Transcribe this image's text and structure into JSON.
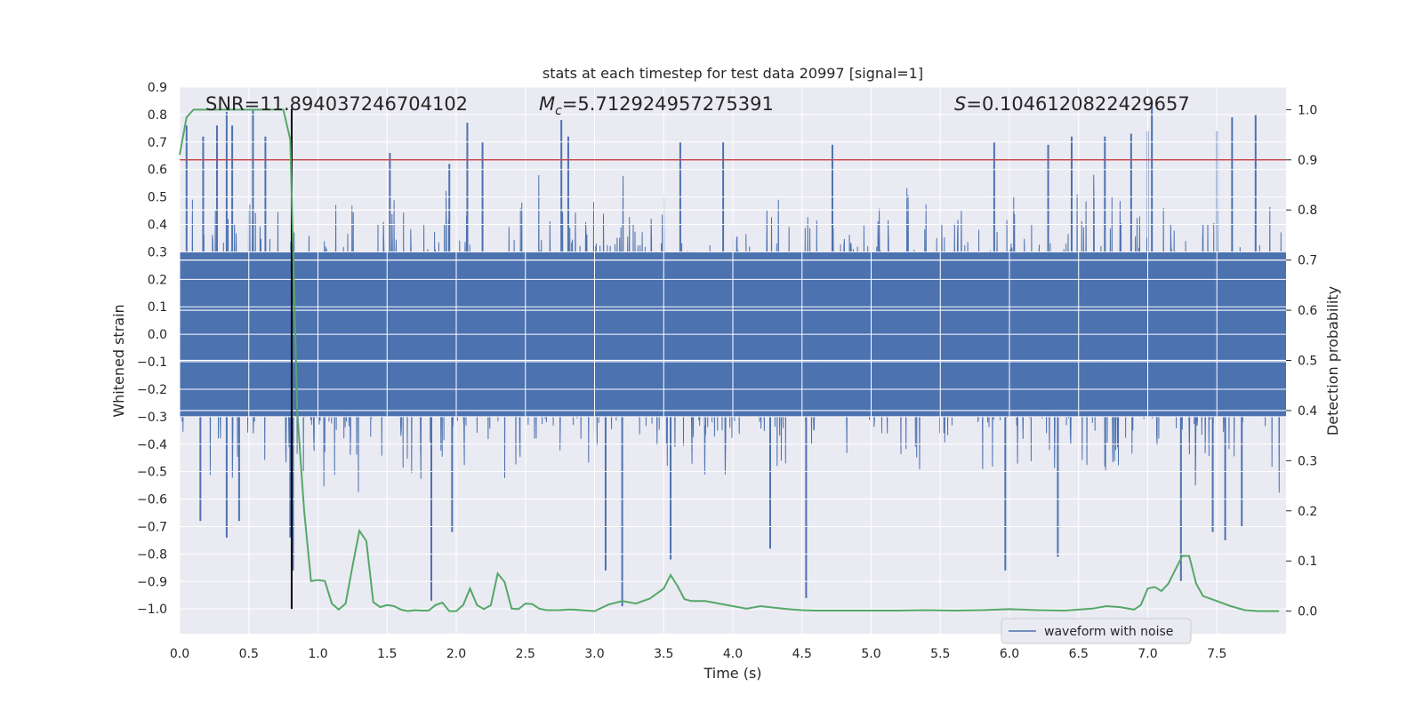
{
  "chart_data": {
    "type": "line",
    "title": "stats at each timestep for test data 20997 [signal=1]",
    "xlabel": "Time (s)",
    "ylabel": "Whitened strain",
    "ylabel_right": "Detection probability",
    "xlim": [
      0.0,
      8.0
    ],
    "ylim": [
      -1.09,
      0.9
    ],
    "ylim_right": [
      -0.045,
      1.045
    ],
    "x_ticks": [
      "0.0",
      "0.5",
      "1.0",
      "1.5",
      "2.0",
      "2.5",
      "3.0",
      "3.5",
      "4.0",
      "4.5",
      "5.0",
      "5.5",
      "6.0",
      "6.5",
      "7.0",
      "7.5"
    ],
    "x_tick_values": [
      0,
      0.5,
      1,
      1.5,
      2,
      2.5,
      3,
      3.5,
      4,
      4.5,
      5,
      5.5,
      6,
      6.5,
      7,
      7.5
    ],
    "y_ticks": [
      "0.9",
      "0.8",
      "0.7",
      "0.6",
      "0.5",
      "0.4",
      "0.3",
      "0.2",
      "0.1",
      "0.0",
      "−0.1",
      "−0.2",
      "−0.3",
      "−0.4",
      "−0.5",
      "−0.6",
      "−0.7",
      "−0.8",
      "−0.9",
      "−1.0"
    ],
    "y_tick_values": [
      0.9,
      0.8,
      0.7,
      0.6,
      0.5,
      0.4,
      0.3,
      0.2,
      0.1,
      0,
      -0.1,
      -0.2,
      -0.3,
      -0.4,
      -0.5,
      -0.6,
      -0.7,
      -0.8,
      -0.9,
      -1.0
    ],
    "y2_ticks": [
      "1.0",
      "0.9",
      "0.8",
      "0.7",
      "0.6",
      "0.5",
      "0.4",
      "0.3",
      "0.2",
      "0.1",
      "0.0"
    ],
    "y2_tick_values": [
      1.0,
      0.9,
      0.8,
      0.7,
      0.6,
      0.5,
      0.4,
      0.3,
      0.2,
      0.1,
      0.0
    ],
    "annotations": {
      "snr": "SNR=11.894037246704102",
      "mc_symbol": "M",
      "mc_sub": "c",
      "mc_value": "=5.712924957275391",
      "s_symbol": "S",
      "s_value": "=0.1046120822429657"
    },
    "threshold": {
      "value": 0.9,
      "axis": "right",
      "color": "#c44e52"
    },
    "event_marker": {
      "time": 0.81,
      "y_top": 0.82,
      "y_bottom": -1.0,
      "color": "#000000"
    },
    "series": [
      {
        "name": "waveform with noise",
        "axis": "left",
        "color": "#4c72b0",
        "kind": "noise",
        "description": "dense whitened strain samples, core band roughly ±0.3, extremes about +0.82 / -0.99",
        "spikes": [
          {
            "t": 0.05,
            "v": 0.76
          },
          {
            "t": 0.17,
            "v": 0.72
          },
          {
            "t": 0.27,
            "v": 0.76
          },
          {
            "t": 0.34,
            "v": 0.81
          },
          {
            "t": 0.38,
            "v": 0.76
          },
          {
            "t": 0.53,
            "v": 0.82
          },
          {
            "t": 0.62,
            "v": 0.72
          },
          {
            "t": 1.52,
            "v": 0.66
          },
          {
            "t": 1.95,
            "v": 0.62
          },
          {
            "t": 2.08,
            "v": 0.77
          },
          {
            "t": 2.19,
            "v": 0.7
          },
          {
            "t": 2.76,
            "v": 0.78
          },
          {
            "t": 2.81,
            "v": 0.72
          },
          {
            "t": 3.62,
            "v": 0.7
          },
          {
            "t": 3.93,
            "v": 0.7
          },
          {
            "t": 4.72,
            "v": 0.69
          },
          {
            "t": 5.89,
            "v": 0.7
          },
          {
            "t": 6.28,
            "v": 0.69
          },
          {
            "t": 6.45,
            "v": 0.72
          },
          {
            "t": 6.69,
            "v": 0.72
          },
          {
            "t": 6.88,
            "v": 0.73
          },
          {
            "t": 7.0,
            "v": 0.74
          },
          {
            "t": 7.03,
            "v": 0.83
          },
          {
            "t": 7.5,
            "v": 0.74
          },
          {
            "t": 7.61,
            "v": 0.79
          },
          {
            "t": 7.78,
            "v": 0.8
          },
          {
            "t": 0.15,
            "v": -0.68
          },
          {
            "t": 0.34,
            "v": -0.74
          },
          {
            "t": 0.43,
            "v": -0.68
          },
          {
            "t": 0.8,
            "v": -0.74
          },
          {
            "t": 0.82,
            "v": -0.86
          },
          {
            "t": 1.82,
            "v": -0.97
          },
          {
            "t": 1.97,
            "v": -0.72
          },
          {
            "t": 3.2,
            "v": -0.99
          },
          {
            "t": 3.08,
            "v": -0.86
          },
          {
            "t": 3.55,
            "v": -0.82
          },
          {
            "t": 4.27,
            "v": -0.78
          },
          {
            "t": 4.53,
            "v": -0.96
          },
          {
            "t": 5.97,
            "v": -0.86
          },
          {
            "t": 6.35,
            "v": -0.81
          },
          {
            "t": 7.24,
            "v": -0.9
          },
          {
            "t": 7.47,
            "v": -0.72
          },
          {
            "t": 7.56,
            "v": -0.75
          },
          {
            "t": 7.68,
            "v": -0.7
          }
        ]
      },
      {
        "name": "detection probability",
        "axis": "right",
        "color": "#55a868",
        "kind": "line",
        "x": [
          0.0,
          0.05,
          0.1,
          0.15,
          0.2,
          0.25,
          0.3,
          0.35,
          0.4,
          0.45,
          0.5,
          0.55,
          0.6,
          0.65,
          0.7,
          0.75,
          0.8,
          0.85,
          0.88,
          0.9,
          0.95,
          1.0,
          1.05,
          1.1,
          1.15,
          1.2,
          1.25,
          1.3,
          1.35,
          1.4,
          1.45,
          1.5,
          1.55,
          1.6,
          1.65,
          1.7,
          1.75,
          1.8,
          1.85,
          1.9,
          1.95,
          2.0,
          2.05,
          2.1,
          2.15,
          2.2,
          2.25,
          2.3,
          2.35,
          2.4,
          2.45,
          2.5,
          2.55,
          2.6,
          2.65,
          2.7,
          2.75,
          2.8,
          2.85,
          2.9,
          3.0,
          3.1,
          3.2,
          3.3,
          3.4,
          3.5,
          3.55,
          3.6,
          3.65,
          3.7,
          3.75,
          3.8,
          3.9,
          4.0,
          4.1,
          4.2,
          4.3,
          4.4,
          4.5,
          4.6,
          4.8,
          5.0,
          5.2,
          5.4,
          5.6,
          5.8,
          6.0,
          6.2,
          6.4,
          6.6,
          6.7,
          6.8,
          6.9,
          6.95,
          7.0,
          7.05,
          7.1,
          7.15,
          7.2,
          7.25,
          7.3,
          7.35,
          7.4,
          7.5,
          7.6,
          7.7,
          7.8,
          7.95
        ],
        "values": [
          0.91,
          0.985,
          1.0,
          1.0,
          1.0,
          1.0,
          1.0,
          1.0,
          1.0,
          1.0,
          1.0,
          1.0,
          1.0,
          1.0,
          1.0,
          1.0,
          0.94,
          0.4,
          0.28,
          0.2,
          0.06,
          0.062,
          0.06,
          0.015,
          0.003,
          0.015,
          0.09,
          0.16,
          0.14,
          0.018,
          0.008,
          0.012,
          0.01,
          0.003,
          0.0,
          0.002,
          0.001,
          0.001,
          0.012,
          0.017,
          0.0,
          0.0,
          0.012,
          0.045,
          0.012,
          0.004,
          0.012,
          0.075,
          0.058,
          0.005,
          0.004,
          0.015,
          0.014,
          0.005,
          0.002,
          0.002,
          0.002,
          0.003,
          0.003,
          0.002,
          0.0,
          0.013,
          0.02,
          0.015,
          0.025,
          0.045,
          0.072,
          0.05,
          0.024,
          0.02,
          0.02,
          0.02,
          0.015,
          0.01,
          0.005,
          0.01,
          0.007,
          0.004,
          0.002,
          0.001,
          0.001,
          0.001,
          0.001,
          0.002,
          0.001,
          0.002,
          0.004,
          0.002,
          0.001,
          0.005,
          0.01,
          0.008,
          0.003,
          0.012,
          0.045,
          0.048,
          0.04,
          0.055,
          0.083,
          0.11,
          0.11,
          0.055,
          0.03,
          0.02,
          0.01,
          0.002,
          0.0,
          0.0
        ]
      }
    ],
    "legend": {
      "entries": [
        "waveform with noise"
      ],
      "position": "lower-right"
    }
  }
}
